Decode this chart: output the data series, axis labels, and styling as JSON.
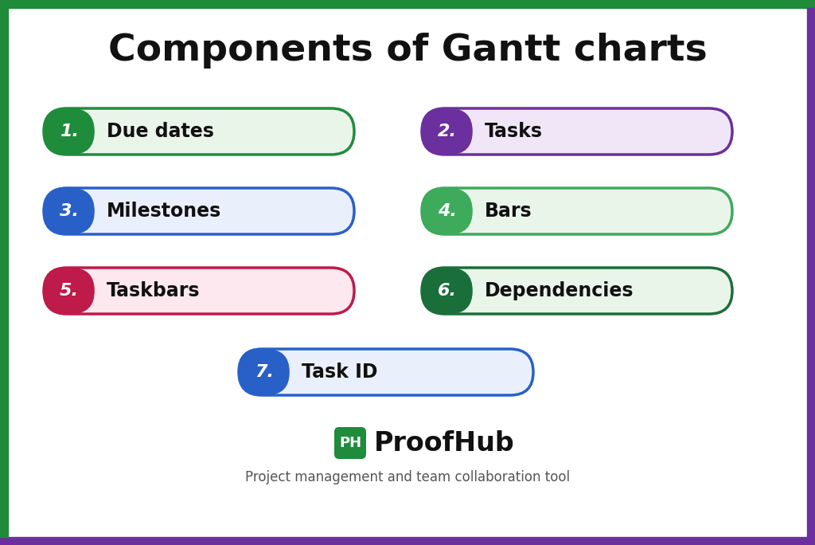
{
  "title": "Components of Gantt charts",
  "title_fontsize": 34,
  "background_color": "#ffffff",
  "items": [
    {
      "num": "1.",
      "label": "Due dates",
      "num_color": "#1e8c3a",
      "fill_color": "#eaf5ea",
      "border_color": "#1e8c3a",
      "col": 0,
      "row": 0
    },
    {
      "num": "2.",
      "label": "Tasks",
      "num_color": "#6b2f9e",
      "fill_color": "#f0e6f8",
      "border_color": "#6b2f9e",
      "col": 1,
      "row": 0
    },
    {
      "num": "3.",
      "label": "Milestones",
      "num_color": "#2860c8",
      "fill_color": "#eaf0fb",
      "border_color": "#2860c8",
      "col": 0,
      "row": 1
    },
    {
      "num": "4.",
      "label": "Bars",
      "num_color": "#3daa5c",
      "fill_color": "#eaf5ea",
      "border_color": "#3daa5c",
      "col": 1,
      "row": 1
    },
    {
      "num": "5.",
      "label": "Taskbars",
      "num_color": "#be1a4a",
      "fill_color": "#fce8ee",
      "border_color": "#be1a4a",
      "col": 0,
      "row": 2
    },
    {
      "num": "6.",
      "label": "Dependencies",
      "num_color": "#1a6e3a",
      "fill_color": "#eaf5ea",
      "border_color": "#1a6e3a",
      "col": 1,
      "row": 2
    },
    {
      "num": "7.",
      "label": "Task ID",
      "num_color": "#2860c8",
      "fill_color": "#eaf0fb",
      "border_color": "#2860c8",
      "col": "center",
      "row": 3
    }
  ],
  "proofhub_text": "ProofHub",
  "proofhub_sub": "Project management and team collaboration tool",
  "ph_bg_color": "#1e8c3a",
  "border_top_color": "#1e8c3a",
  "border_bottom_color": "#6b2f9e",
  "border_left_color": "#1e8c3a",
  "border_right_color": "#6b2f9e"
}
